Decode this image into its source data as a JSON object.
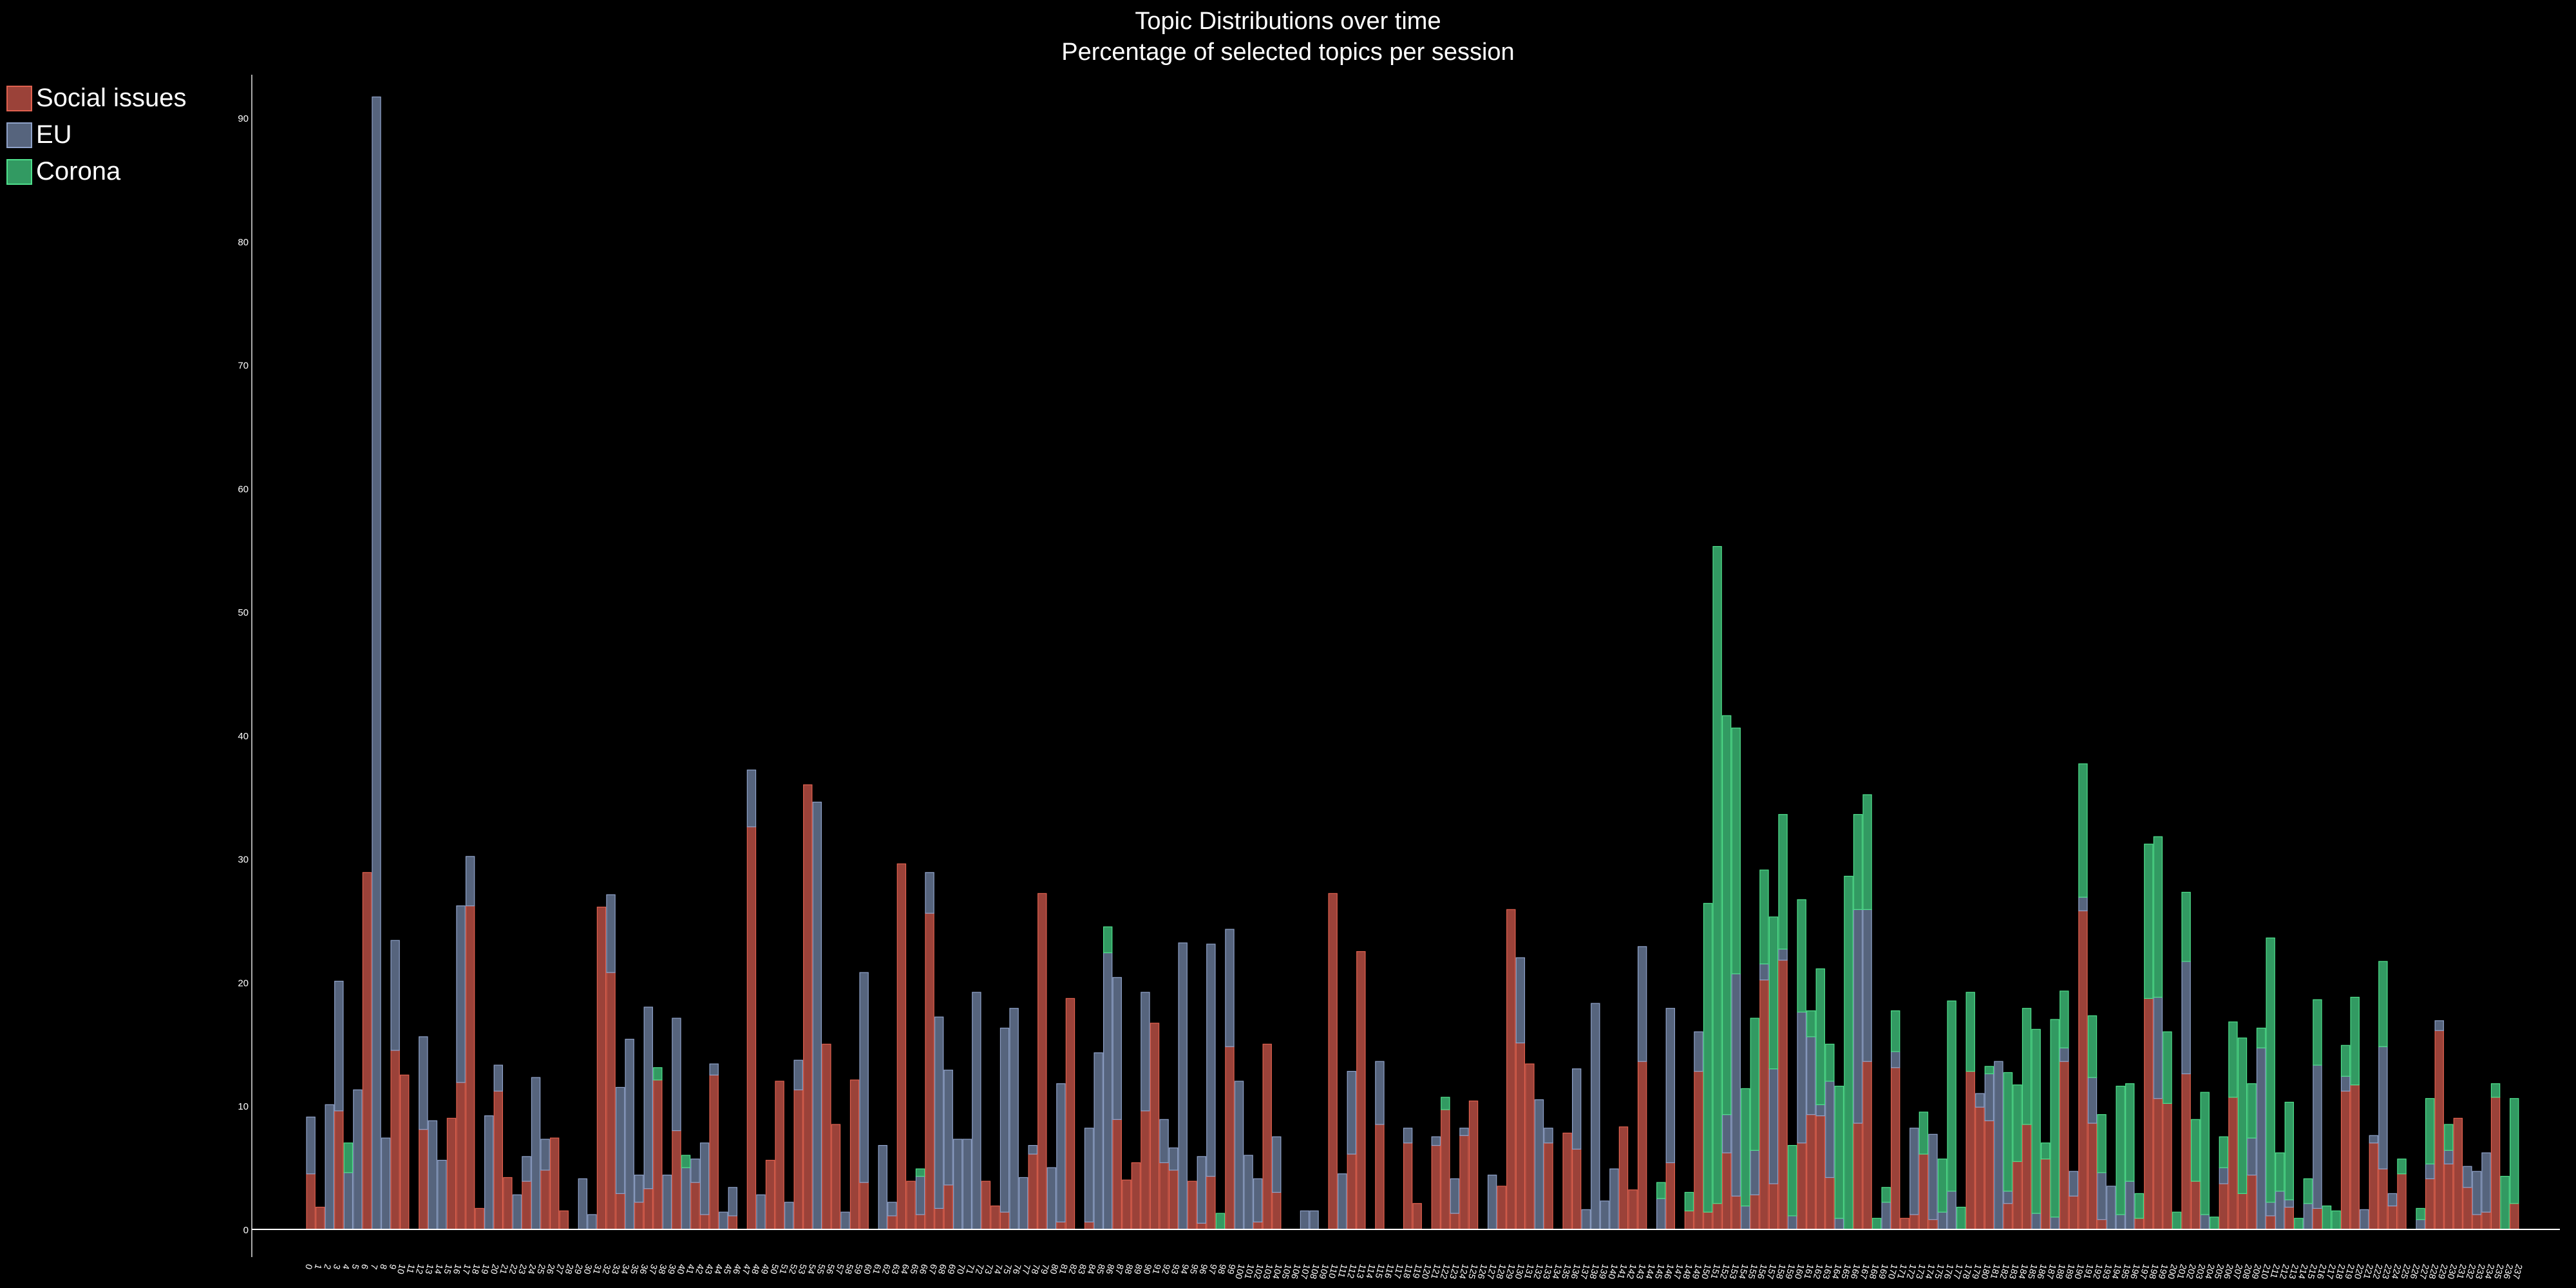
{
  "chart_data": {
    "type": "bar",
    "stacked": true,
    "title": "Topic Distributions over time",
    "subtitle": "Percentage of selected topics per session",
    "xlabel": "",
    "ylabel": "",
    "ylim": [
      0,
      93.5
    ],
    "y_ticks": [
      "0",
      "10",
      "20",
      "30",
      "40",
      "50",
      "60",
      "70",
      "80",
      "90"
    ],
    "grid": false,
    "legend_position": "top-left",
    "x_tick_labels": [
      "0",
      "1",
      "2",
      "3",
      "4",
      "5",
      "6",
      "7",
      "8",
      "9",
      "10",
      "11",
      "12",
      "13",
      "14",
      "15",
      "16",
      "17",
      "18",
      "19",
      "20",
      "21",
      "22",
      "23",
      "24",
      "25",
      "26",
      "27",
      "28",
      "29",
      "30",
      "31",
      "32",
      "33",
      "34",
      "35",
      "36",
      "37",
      "38",
      "39",
      "40",
      "41",
      "42",
      "43",
      "44",
      "45",
      "46",
      "47",
      "48",
      "49",
      "50",
      "51",
      "52",
      "53",
      "54",
      "55",
      "56",
      "57",
      "58",
      "59",
      "60",
      "61",
      "62",
      "63",
      "64",
      "65",
      "66",
      "67",
      "68",
      "69",
      "70",
      "71",
      "72",
      "73",
      "74",
      "75",
      "76",
      "77",
      "78",
      "79",
      "80",
      "81",
      "82",
      "83",
      "84",
      "85",
      "86",
      "87",
      "88",
      "89",
      "90",
      "91",
      "92",
      "93",
      "94",
      "95",
      "96",
      "97",
      "98",
      "99",
      "100",
      "101",
      "102",
      "103",
      "104",
      "105",
      "106",
      "107",
      "108",
      "109",
      "110",
      "111",
      "112",
      "113",
      "114",
      "115",
      "116",
      "117",
      "118",
      "119",
      "120",
      "121",
      "122",
      "123",
      "124",
      "125",
      "126",
      "127",
      "128",
      "129",
      "130",
      "131",
      "132",
      "133",
      "134",
      "135",
      "136",
      "137",
      "138",
      "139",
      "140",
      "141",
      "142",
      "143",
      "144",
      "145",
      "146",
      "147",
      "148",
      "149",
      "150",
      "151",
      "152",
      "153",
      "154",
      "155",
      "156",
      "157",
      "158",
      "159",
      "160",
      "161",
      "162",
      "163",
      "164",
      "165",
      "166",
      "167",
      "168",
      "169",
      "170",
      "171",
      "172",
      "173",
      "174",
      "175",
      "176",
      "177",
      "178",
      "179",
      "180",
      "181",
      "182",
      "183",
      "184",
      "185",
      "186",
      "187",
      "188",
      "189",
      "190",
      "191",
      "192",
      "193",
      "194",
      "195",
      "196",
      "197",
      "198",
      "199",
      "200",
      "201",
      "202",
      "203",
      "204",
      "205",
      "206",
      "207",
      "208",
      "209",
      "210",
      "211",
      "212",
      "213",
      "214",
      "215",
      "216",
      "217",
      "218",
      "219",
      "220",
      "221",
      "222",
      "223",
      "224",
      "225",
      "226",
      "227",
      "228",
      "229",
      "230",
      "231",
      "232",
      "233",
      "234",
      "235",
      "236",
      "237"
    ],
    "series": [
      {
        "name": "Social issues",
        "color": "#9b4239",
        "stroke": "#e0614f",
        "values": [
          4.5,
          1.8,
          0,
          9.6,
          0,
          0,
          28.9,
          0,
          0,
          14.5,
          12.5,
          0,
          8.1,
          0,
          0,
          9.0,
          11.9,
          26.2,
          1.7,
          0,
          11.2,
          4.2,
          0,
          3.9,
          0,
          4.8,
          7.4,
          1.5,
          0,
          0,
          0,
          26.1,
          20.8,
          2.9,
          0,
          2.2,
          3.3,
          12.1,
          0,
          8.0,
          0,
          3.8,
          1.2,
          12.5,
          0,
          1.1,
          0,
          32.6,
          0,
          5.6,
          12.0,
          0,
          11.3,
          36.0,
          0,
          15.0,
          8.5,
          0,
          12.1,
          3.8,
          0,
          0,
          1.1,
          29.6,
          3.9,
          1.2,
          25.6,
          1.7,
          3.6,
          0,
          0,
          0,
          3.9,
          1.9,
          1.4,
          0,
          0,
          6.1,
          27.2,
          0,
          0.6,
          18.7,
          0,
          0.6,
          0,
          0,
          8.9,
          4.0,
          5.4,
          9.6,
          16.7,
          5.4,
          4.8,
          0,
          3.9,
          0.5,
          4.3,
          0,
          14.8,
          0,
          0,
          0.6,
          15.0,
          3.0,
          0,
          0,
          0,
          0,
          0,
          27.2,
          0,
          6.1,
          22.5,
          0,
          8.5,
          0,
          0,
          7.0,
          2.1,
          0,
          6.8,
          9.7,
          1.3,
          7.6,
          10.4,
          0,
          0,
          3.5,
          25.9,
          15.1,
          13.4,
          0,
          7.0,
          0,
          7.8,
          6.5,
          0,
          0,
          0,
          0,
          8.3,
          3.2,
          13.6,
          0,
          0,
          5.4,
          0,
          1.5,
          12.8,
          1.4,
          2.1,
          6.2,
          2.7,
          0,
          2.8,
          20.2,
          3.7,
          21.8,
          0,
          7.0,
          9.3,
          9.2,
          4.2,
          0,
          0,
          8.6,
          13.6,
          0,
          0,
          13.1,
          0.9,
          1.2,
          6.1,
          0.8,
          0,
          0,
          0,
          12.8,
          9.9,
          8.8,
          0,
          2.1,
          5.5,
          8.5,
          0,
          5.7,
          0,
          13.6,
          2.7,
          25.8,
          8.6,
          0.8,
          0,
          0,
          0,
          0.9,
          18.7,
          10.6,
          10.2,
          0,
          12.6,
          3.9,
          0,
          0,
          3.7,
          10.7,
          2.9,
          4.4,
          0,
          1.1,
          0,
          1.8,
          0,
          0,
          1.7,
          0,
          0,
          11.2,
          11.7,
          0,
          7.0,
          4.9,
          1.9,
          4.5,
          0,
          0,
          4.1,
          16.1,
          5.3,
          9.0,
          3.4,
          1.2,
          1.4,
          10.7,
          0,
          2.1
        ]
      },
      {
        "name": "EU",
        "color": "#56647d",
        "stroke": "#8fa2c9",
        "values": [
          4.6,
          0,
          10.1,
          10.5,
          4.6,
          11.3,
          0,
          91.7,
          7.4,
          8.9,
          0,
          0,
          7.5,
          8.8,
          5.6,
          0,
          14.3,
          4.0,
          0,
          9.2,
          2.1,
          0,
          2.8,
          2.0,
          12.3,
          2.5,
          0,
          0,
          0,
          4.1,
          1.2,
          0,
          6.3,
          8.6,
          15.4,
          2.2,
          14.7,
          0,
          4.4,
          9.1,
          5.0,
          1.9,
          5.8,
          0.9,
          1.4,
          2.3,
          0,
          4.6,
          2.8,
          0,
          0,
          2.2,
          2.4,
          0,
          34.6,
          0,
          0,
          1.4,
          0,
          17.0,
          0,
          6.8,
          1.1,
          0,
          0,
          3.1,
          3.3,
          15.5,
          9.3,
          7.3,
          7.3,
          19.2,
          0,
          0,
          14.9,
          17.9,
          4.2,
          0.7,
          0,
          5.0,
          11.2,
          0,
          0,
          7.6,
          14.3,
          22.4,
          11.5,
          0,
          0,
          9.6,
          0,
          3.5,
          1.8,
          23.2,
          0,
          5.4,
          18.8,
          0,
          9.5,
          12.0,
          6.0,
          3.5,
          0,
          4.5,
          0,
          0,
          1.5,
          1.5,
          0,
          0,
          4.5,
          6.7,
          0,
          0,
          5.1,
          0,
          0,
          1.2,
          0,
          0,
          0.7,
          0,
          2.8,
          0.6,
          0,
          0,
          4.4,
          0,
          0,
          6.9,
          0,
          10.5,
          1.2,
          0,
          0,
          6.5,
          1.6,
          18.3,
          2.3,
          4.9,
          0,
          0,
          9.3,
          0,
          2.5,
          12.5,
          0,
          0,
          3.2,
          0,
          0,
          3.1,
          18.0,
          1.9,
          3.6,
          1.3,
          9.3,
          0.9,
          1.1,
          10.6,
          6.3,
          0.9,
          7.8,
          0.9,
          0,
          17.3,
          12.3,
          0,
          2.2,
          1.3,
          0,
          7.0,
          0,
          6.9,
          1.4,
          3.1,
          0,
          0,
          1.1,
          3.8,
          13.6,
          1.0,
          0,
          0,
          1.3,
          0,
          1.0,
          1.1,
          2.0,
          1.1,
          3.7,
          3.8,
          3.5,
          1.2,
          3.9,
          0,
          0,
          8.2,
          0,
          0,
          9.1,
          0,
          1.2,
          0,
          1.3,
          0,
          0,
          3.0,
          14.7,
          1.1,
          3.1,
          0.6,
          0,
          2.1,
          11.6,
          0,
          0,
          1.2,
          0,
          1.6,
          0.6,
          9.9,
          1.0,
          0,
          0,
          0.8,
          1.2,
          0.8,
          1.1,
          0,
          1.7,
          3.5,
          4.8,
          0,
          0,
          0
        ]
      },
      {
        "name": "Corona",
        "color": "#329a62",
        "stroke": "#4fe08c",
        "values": [
          0,
          0,
          0,
          0,
          2.4,
          0,
          0,
          0,
          0,
          0,
          0,
          0,
          0,
          0,
          0,
          0,
          0,
          0,
          0,
          0,
          0,
          0,
          0,
          0,
          0,
          0,
          0,
          0,
          0,
          0,
          0,
          0,
          0,
          0,
          0,
          0,
          0,
          1.0,
          0,
          0,
          1.0,
          0,
          0,
          0,
          0,
          0,
          0,
          0,
          0,
          0,
          0,
          0,
          0,
          0,
          0,
          0,
          0,
          0,
          0,
          0,
          0,
          0,
          0,
          0,
          0,
          0.6,
          0,
          0,
          0,
          0,
          0,
          0,
          0,
          0,
          0,
          0,
          0,
          0,
          0,
          0,
          0,
          0,
          0,
          0,
          0,
          2.1,
          0,
          0,
          0,
          0,
          0,
          0,
          0,
          0,
          0,
          0,
          0,
          1.3,
          0,
          0,
          0,
          0,
          0,
          0,
          0,
          0,
          0,
          0,
          0,
          0,
          0,
          0,
          0,
          0,
          0,
          0,
          0,
          0,
          0,
          0,
          0,
          1.0,
          0,
          0,
          0,
          0,
          0,
          0,
          0,
          0,
          0,
          0,
          0,
          0,
          0,
          0,
          0,
          0,
          0,
          0,
          0,
          0,
          0,
          0,
          1.3,
          0,
          0,
          1.5,
          0,
          25.0,
          53.2,
          32.3,
          19.9,
          9.5,
          10.7,
          7.6,
          12.3,
          10.9,
          5.7,
          9.1,
          2.1,
          11.0,
          3.0,
          10.7,
          28.6,
          7.7,
          9.3,
          0.9,
          1.2,
          3.3,
          0,
          0,
          3.4,
          0,
          4.3,
          15.4,
          1.8,
          6.4,
          0,
          0.6,
          0,
          9.6,
          6.2,
          9.4,
          14.9,
          1.3,
          16.0,
          4.6,
          0,
          10.8,
          5.0,
          4.7,
          0,
          10.4,
          7.9,
          2.0,
          12.5,
          13.0,
          5.8,
          1.4,
          5.6,
          5.0,
          9.9,
          1.0,
          2.5,
          6.1,
          12.6,
          4.4,
          1.6,
          21.4,
          3.1,
          7.9,
          0.9,
          2.0,
          5.3,
          1.9,
          1.5,
          2.5,
          7.1,
          0,
          0,
          6.9,
          0,
          1.2,
          0,
          0.9,
          5.3,
          0,
          2.1,
          0,
          0,
          0,
          0,
          1.1,
          4.3,
          8.5
        ]
      }
    ]
  }
}
